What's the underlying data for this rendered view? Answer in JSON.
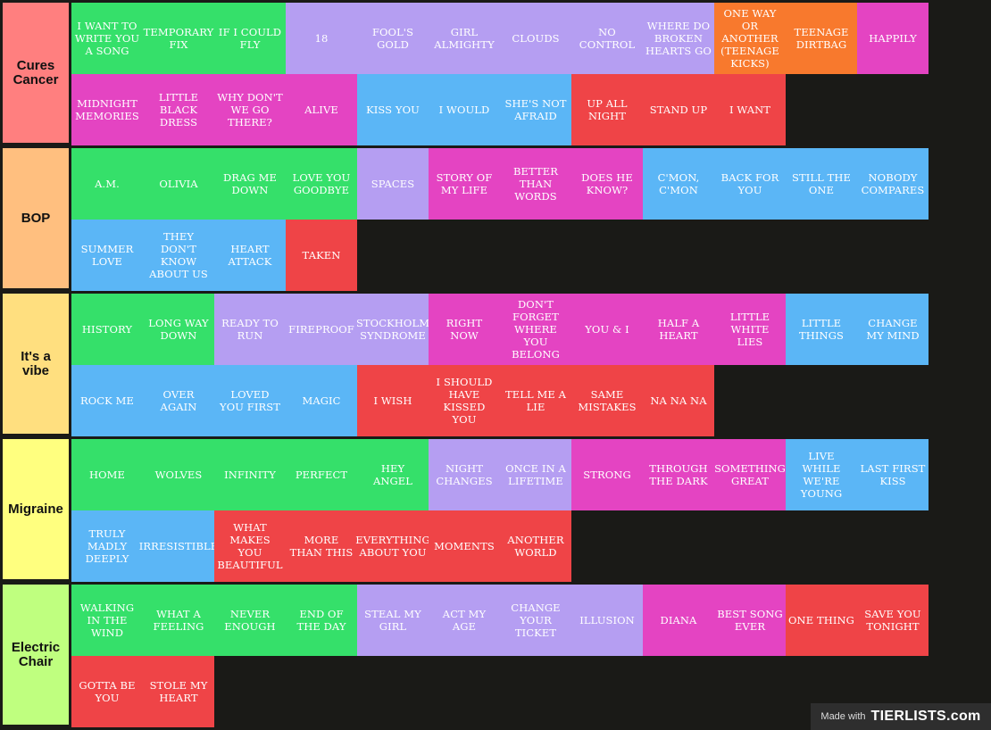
{
  "tiers": [
    {
      "label": "Cures Cancer",
      "color": "#ff7f7f",
      "items": [
        {
          "text": "I WANT TO WRITE YOU A SONG",
          "color": "green"
        },
        {
          "text": "TEMPORARY FIX",
          "color": "green"
        },
        {
          "text": "IF I COULD FLY",
          "color": "green"
        },
        {
          "text": "18",
          "color": "purple"
        },
        {
          "text": "FOOL'S GOLD",
          "color": "purple"
        },
        {
          "text": "GIRL ALMIGHTY",
          "color": "purple"
        },
        {
          "text": "CLOUDS",
          "color": "purple"
        },
        {
          "text": "NO CONTROL",
          "color": "purple"
        },
        {
          "text": "WHERE DO BROKEN HEARTS GO",
          "color": "purple"
        },
        {
          "text": "ONE WAY OR ANOTHER (TEENAGE KICKS)",
          "color": "orange"
        },
        {
          "text": "TEENAGE DIRTBAG",
          "color": "orange"
        },
        {
          "text": "HAPPILY",
          "color": "pink"
        },
        {
          "text": "MIDNIGHT MEMORIES",
          "color": "pink"
        },
        {
          "text": "LITTLE BLACK DRESS",
          "color": "pink"
        },
        {
          "text": "WHY DON'T WE GO THERE?",
          "color": "pink"
        },
        {
          "text": "ALIVE",
          "color": "pink"
        },
        {
          "text": "KISS YOU",
          "color": "blue"
        },
        {
          "text": "I WOULD",
          "color": "blue"
        },
        {
          "text": "SHE'S NOT AFRAID",
          "color": "blue"
        },
        {
          "text": "UP ALL NIGHT",
          "color": "red"
        },
        {
          "text": "STAND UP",
          "color": "red"
        },
        {
          "text": "I WANT",
          "color": "red"
        }
      ]
    },
    {
      "label": "BOP",
      "color": "#ffbf7f",
      "items": [
        {
          "text": "A.M.",
          "color": "green"
        },
        {
          "text": "OLIVIA",
          "color": "green"
        },
        {
          "text": "DRAG ME DOWN",
          "color": "green"
        },
        {
          "text": "LOVE YOU GOODBYE",
          "color": "green"
        },
        {
          "text": "SPACES",
          "color": "purple"
        },
        {
          "text": "STORY OF MY LIFE",
          "color": "pink"
        },
        {
          "text": "BETTER THAN WORDS",
          "color": "pink"
        },
        {
          "text": "DOES HE KNOW?",
          "color": "pink"
        },
        {
          "text": "C'MON, C'MON",
          "color": "blue"
        },
        {
          "text": "BACK FOR YOU",
          "color": "blue"
        },
        {
          "text": "STILL THE ONE",
          "color": "blue"
        },
        {
          "text": "NOBODY COMPARES",
          "color": "blue"
        },
        {
          "text": "SUMMER LOVE",
          "color": "blue"
        },
        {
          "text": "THEY DON'T KNOW ABOUT US",
          "color": "blue"
        },
        {
          "text": "HEART ATTACK",
          "color": "blue"
        },
        {
          "text": "TAKEN",
          "color": "red"
        }
      ]
    },
    {
      "label": "It's a vibe",
      "color": "#ffdf7f",
      "items": [
        {
          "text": "HISTORY",
          "color": "green"
        },
        {
          "text": "LONG WAY DOWN",
          "color": "green"
        },
        {
          "text": "READY TO RUN",
          "color": "purple"
        },
        {
          "text": "FIREPROOF",
          "color": "purple"
        },
        {
          "text": "STOCKHOLM SYNDROME",
          "color": "purple"
        },
        {
          "text": "RIGHT NOW",
          "color": "pink"
        },
        {
          "text": "DON'T FORGET WHERE YOU BELONG",
          "color": "pink"
        },
        {
          "text": "YOU & I",
          "color": "pink"
        },
        {
          "text": "HALF A HEART",
          "color": "pink"
        },
        {
          "text": "LITTLE WHITE LIES",
          "color": "pink"
        },
        {
          "text": "LITTLE THINGS",
          "color": "blue"
        },
        {
          "text": "CHANGE MY MIND",
          "color": "blue"
        },
        {
          "text": "ROCK ME",
          "color": "blue"
        },
        {
          "text": "OVER AGAIN",
          "color": "blue"
        },
        {
          "text": "LOVED YOU FIRST",
          "color": "blue"
        },
        {
          "text": "MAGIC",
          "color": "blue"
        },
        {
          "text": "I WISH",
          "color": "red"
        },
        {
          "text": "I SHOULD HAVE KISSED YOU",
          "color": "red"
        },
        {
          "text": "TELL ME A LIE",
          "color": "red"
        },
        {
          "text": "SAME MISTAKES",
          "color": "red"
        },
        {
          "text": "NA NA NA",
          "color": "red"
        }
      ]
    },
    {
      "label": "Migraine",
      "color": "#ffff7f",
      "items": [
        {
          "text": "HOME",
          "color": "green"
        },
        {
          "text": "WOLVES",
          "color": "green"
        },
        {
          "text": "INFINITY",
          "color": "green"
        },
        {
          "text": "PERFECT",
          "color": "green"
        },
        {
          "text": "HEY ANGEL",
          "color": "green"
        },
        {
          "text": "NIGHT CHANGES",
          "color": "purple"
        },
        {
          "text": "ONCE IN A LIFETIME",
          "color": "purple"
        },
        {
          "text": "STRONG",
          "color": "pink"
        },
        {
          "text": "THROUGH THE DARK",
          "color": "pink"
        },
        {
          "text": "SOMETHING GREAT",
          "color": "pink"
        },
        {
          "text": "LIVE WHILE WE'RE YOUNG",
          "color": "blue"
        },
        {
          "text": "LAST FIRST KISS",
          "color": "blue"
        },
        {
          "text": "TRULY MADLY DEEPLY",
          "color": "blue"
        },
        {
          "text": "IRRESISTIBLE",
          "color": "blue"
        },
        {
          "text": "WHAT MAKES YOU BEAUTIFUL",
          "color": "red"
        },
        {
          "text": "MORE THAN THIS",
          "color": "red"
        },
        {
          "text": "EVERYTHING ABOUT YOU",
          "color": "red"
        },
        {
          "text": "MOMENTS",
          "color": "red"
        },
        {
          "text": "ANOTHER WORLD",
          "color": "red"
        }
      ]
    },
    {
      "label": "Electric Chair",
      "color": "#bfff7f",
      "items": [
        {
          "text": "WALKING IN THE WIND",
          "color": "green"
        },
        {
          "text": "WHAT A FEELING",
          "color": "green"
        },
        {
          "text": "NEVER ENOUGH",
          "color": "green"
        },
        {
          "text": "END OF THE DAY",
          "color": "green"
        },
        {
          "text": "STEAL MY GIRL",
          "color": "purple"
        },
        {
          "text": "ACT MY AGE",
          "color": "purple"
        },
        {
          "text": "CHANGE YOUR TICKET",
          "color": "purple"
        },
        {
          "text": "ILLUSION",
          "color": "purple"
        },
        {
          "text": "DIANA",
          "color": "pink"
        },
        {
          "text": "BEST SONG EVER",
          "color": "pink"
        },
        {
          "text": "ONE THING",
          "color": "red"
        },
        {
          "text": "SAVE YOU TONIGHT",
          "color": "red"
        },
        {
          "text": "GOTTA BE YOU",
          "color": "red"
        },
        {
          "text": "STOLE MY HEART",
          "color": "red"
        }
      ]
    }
  ],
  "watermark": {
    "made_with": "Made with",
    "logo": "TIERLISTS.com"
  }
}
